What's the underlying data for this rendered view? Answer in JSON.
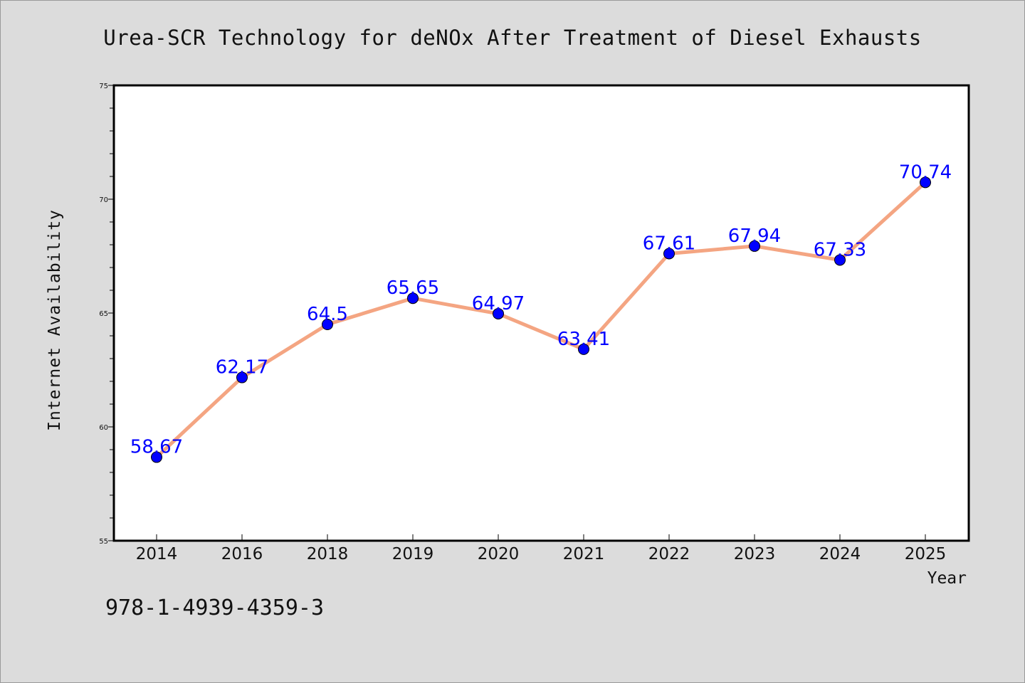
{
  "chart_data": {
    "type": "line",
    "title": "Urea-SCR Technology for deNOx After Treatment of Diesel Exhausts",
    "xlabel": "Year",
    "ylabel": "Internet Availability",
    "categories": [
      "2014",
      "2016",
      "2018",
      "2019",
      "2020",
      "2021",
      "2022",
      "2023",
      "2024",
      "2025"
    ],
    "values": [
      58.67,
      62.17,
      64.5,
      65.65,
      64.97,
      63.41,
      67.61,
      67.94,
      67.33,
      70.74
    ],
    "data_labels": [
      "58.67",
      "62.17",
      "64.5",
      "65.65",
      "64.97",
      "63.41",
      "67.61",
      "67.94",
      "67.33",
      "70.74"
    ],
    "ylim": [
      55,
      75
    ],
    "yticks": [
      55,
      60,
      65,
      70,
      75
    ],
    "ytick_labels": [
      "55",
      "60",
      "65",
      "70",
      "75"
    ],
    "grid": false,
    "line_color": "#f4a582",
    "marker_color": "#0000ff",
    "label_color": "#0000ff",
    "background_color": "#dcdcdc",
    "plot_background_color": "#ffffff"
  },
  "footer": {
    "isbn": "978-1-4939-4359-3"
  }
}
